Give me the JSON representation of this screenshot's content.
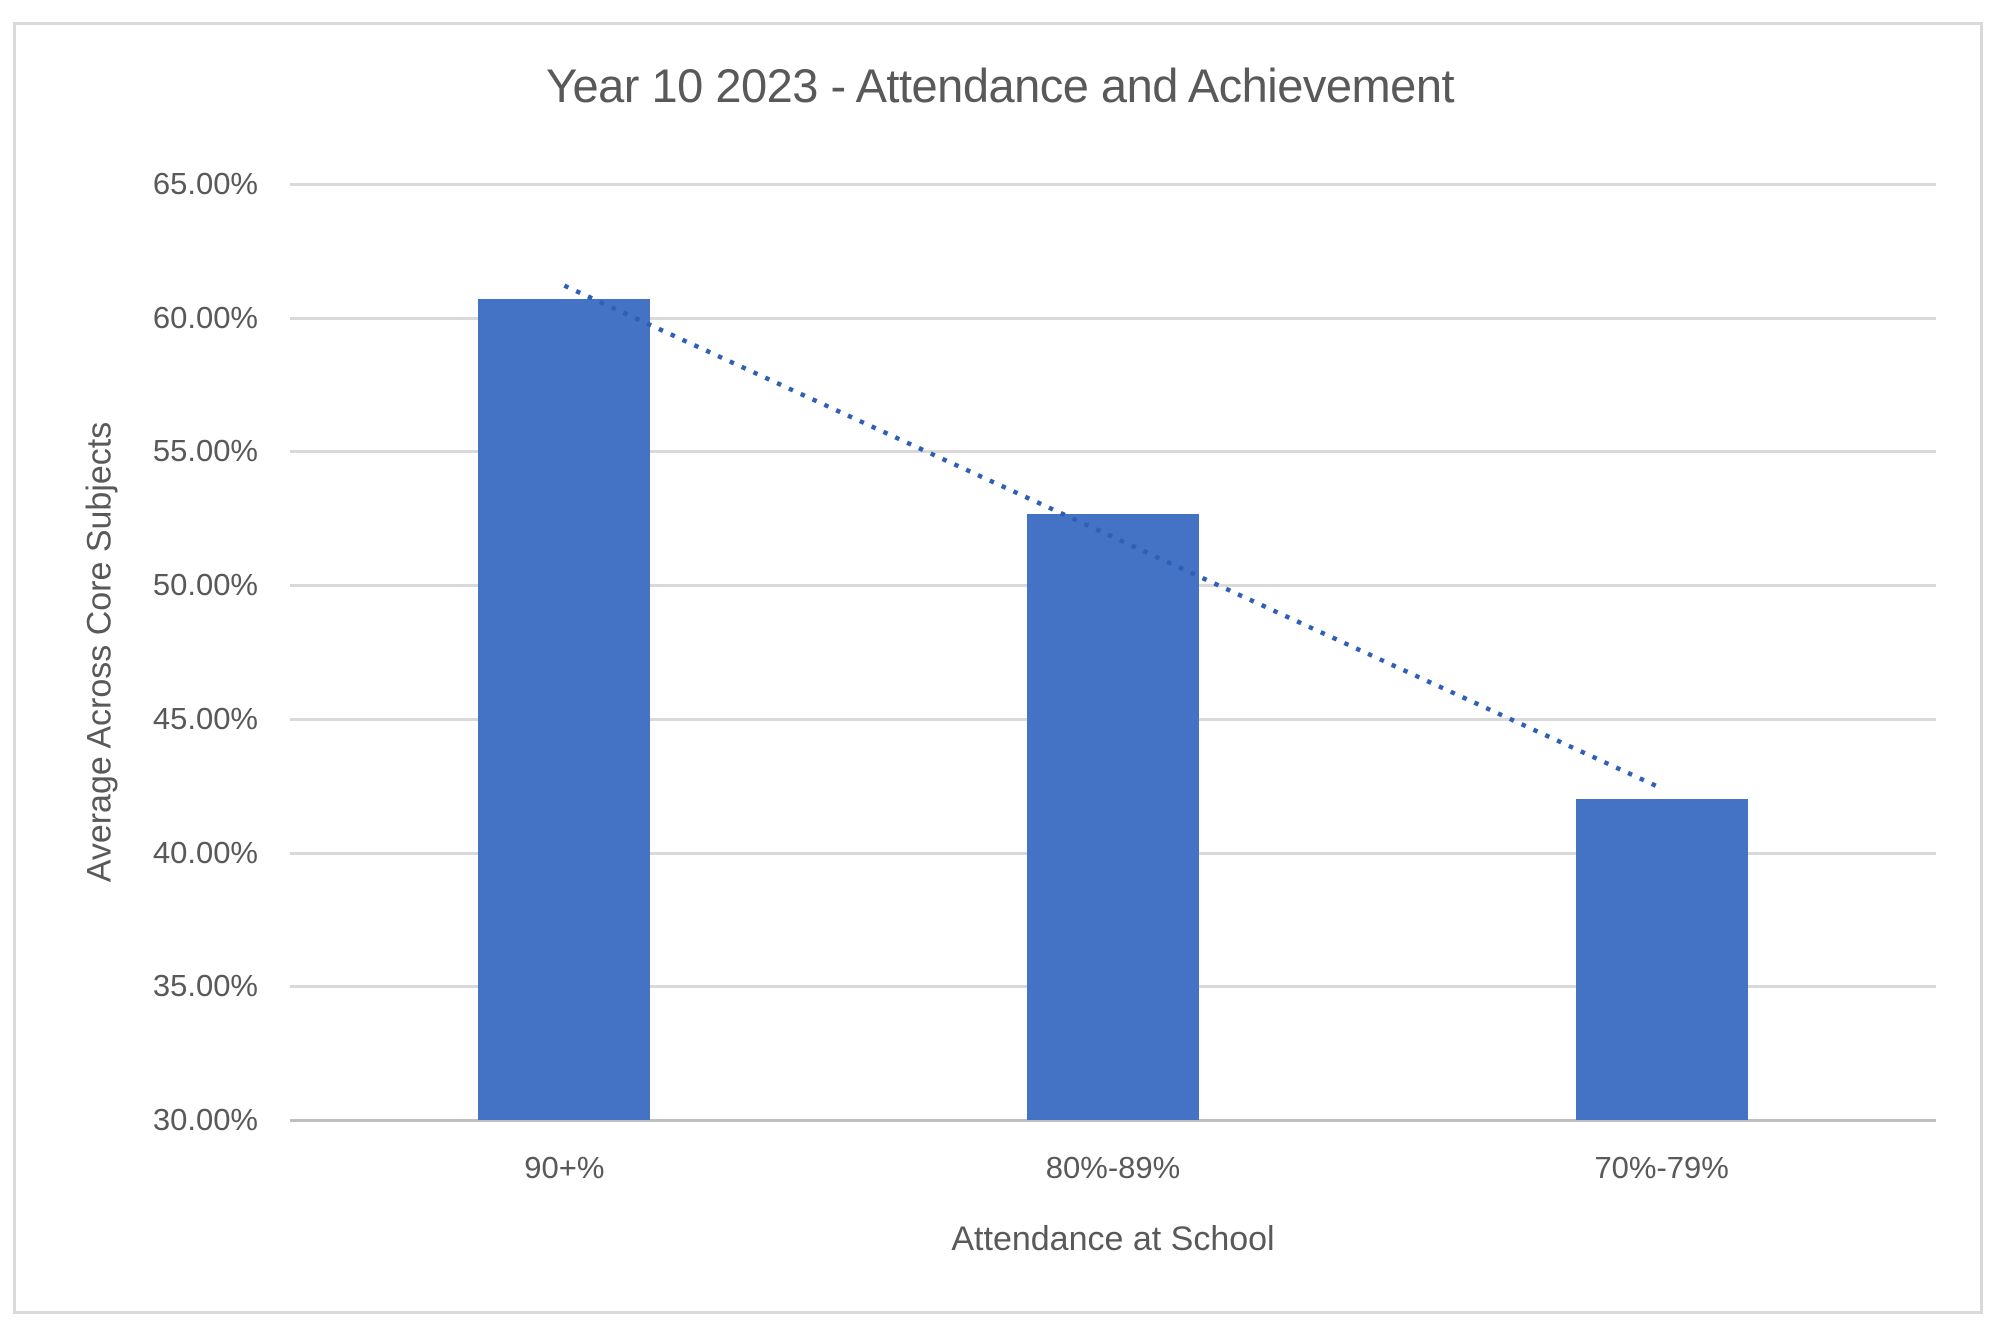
{
  "chart_data": {
    "type": "bar",
    "title": "Year 10 2023 - Attendance and Achievement",
    "xlabel": "Attendance at School",
    "ylabel": "Average Across Core Subjects",
    "categories": [
      "90+%",
      "80%-89%",
      "70%-79%"
    ],
    "values": [
      60.7,
      52.65,
      42.0
    ],
    "ylim": [
      30,
      65
    ],
    "ytick_step": 5,
    "ytick_decimals": 2,
    "ytick_suffix": "%",
    "grid": true,
    "legend": "none",
    "bar_color": "#4472C4",
    "gridline_color": "#D9D9D9",
    "axis_line_color": "#BFBFBF",
    "text_color": "#595959",
    "trendline": {
      "type": "linear",
      "style": "dotted",
      "color": "#2E5FB7",
      "start_value": 61.2,
      "end_value": 42.4
    }
  }
}
